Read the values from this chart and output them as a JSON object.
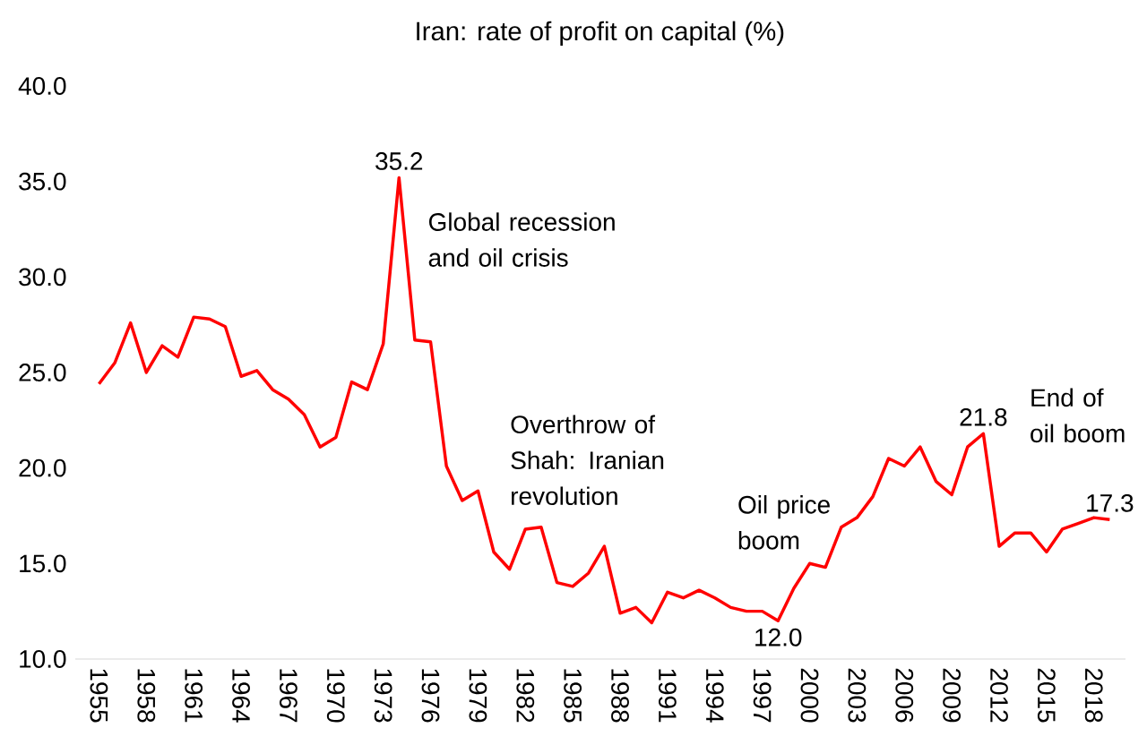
{
  "chart_data": {
    "type": "line",
    "title": "Iran: rate of profit on capital (%)",
    "x": [
      1955,
      1956,
      1957,
      1958,
      1959,
      1960,
      1961,
      1962,
      1963,
      1964,
      1965,
      1966,
      1967,
      1968,
      1969,
      1970,
      1971,
      1972,
      1973,
      1974,
      1975,
      1976,
      1977,
      1978,
      1979,
      1980,
      1981,
      1982,
      1983,
      1984,
      1985,
      1986,
      1987,
      1988,
      1989,
      1990,
      1991,
      1992,
      1993,
      1994,
      1995,
      1996,
      1997,
      1998,
      1999,
      2000,
      2001,
      2002,
      2003,
      2004,
      2005,
      2006,
      2007,
      2008,
      2009,
      2010,
      2011,
      2012,
      2013,
      2014,
      2015,
      2016,
      2017,
      2018,
      2019
    ],
    "series": [
      {
        "color": "#ff0000",
        "values": [
          24.4,
          25.5,
          27.6,
          25.0,
          26.4,
          25.8,
          27.9,
          27.8,
          27.4,
          24.8,
          25.1,
          24.1,
          23.6,
          22.8,
          21.1,
          21.6,
          24.5,
          24.1,
          26.5,
          35.2,
          26.7,
          26.6,
          20.1,
          18.3,
          18.8,
          15.6,
          14.7,
          16.8,
          16.9,
          14.0,
          13.8,
          14.5,
          15.9,
          12.4,
          12.7,
          11.9,
          13.5,
          13.2,
          13.6,
          13.2,
          12.7,
          12.5,
          12.5,
          12.0,
          13.7,
          15.0,
          14.8,
          16.9,
          17.4,
          18.5,
          20.5,
          20.1,
          21.1,
          19.3,
          18.6,
          21.1,
          21.8,
          15.9,
          16.6,
          16.6,
          15.6,
          16.8,
          17.1,
          17.4,
          17.3
        ],
        "value_labels": [
          null,
          null,
          null,
          null,
          null,
          null,
          null,
          null,
          null,
          null,
          null,
          null,
          null,
          null,
          null,
          null,
          null,
          null,
          null,
          "35.2",
          null,
          null,
          null,
          null,
          null,
          null,
          null,
          null,
          null,
          null,
          null,
          null,
          null,
          null,
          null,
          null,
          null,
          null,
          null,
          null,
          null,
          null,
          null,
          "12.0",
          null,
          null,
          null,
          null,
          null,
          null,
          null,
          null,
          null,
          null,
          null,
          null,
          "21.8",
          null,
          null,
          null,
          null,
          null,
          null,
          null,
          "17.3"
        ]
      }
    ],
    "annotations": [
      "Global recession and oil crisis",
      "Overthrow of Shah: Iranian revolution",
      "Oil price boom",
      "End of oil boom"
    ],
    "xlim": [
      1953.5,
      2020
    ],
    "xticks": [
      1955,
      1958,
      1961,
      1964,
      1967,
      1970,
      1973,
      1976,
      1979,
      1982,
      1985,
      1988,
      1991,
      1994,
      1997,
      2000,
      2003,
      2006,
      2009,
      2012,
      2015,
      2018
    ],
    "ylim": [
      10,
      40
    ],
    "yticks": [
      {
        "value": 10,
        "label": "10.0"
      },
      {
        "value": 15,
        "label": "15.0"
      },
      {
        "value": 20,
        "label": "20.0"
      },
      {
        "value": 25,
        "label": "25.0"
      },
      {
        "value": 30,
        "label": "30.0"
      },
      {
        "value": 35,
        "label": "35.0"
      },
      {
        "value": 40,
        "label": "40.0"
      }
    ],
    "grid": false,
    "legend": false,
    "marker": "none",
    "line_style": "solid"
  }
}
